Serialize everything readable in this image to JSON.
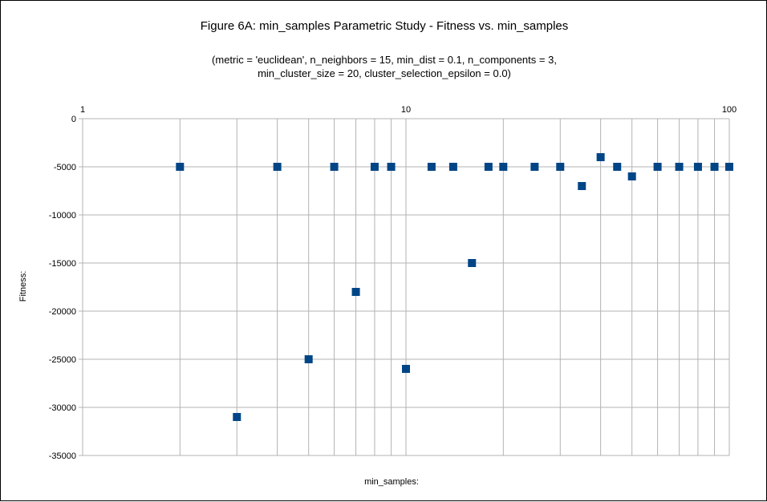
{
  "chart_data": {
    "type": "scatter",
    "title": "Figure 6A: min_samples Parametric Study - Fitness vs. min_samples",
    "subtitle_line1": "(metric = 'euclidean', n_neighbors = 15, min_dist = 0.1, n_components = 3,",
    "subtitle_line2": "min_cluster_size = 20, cluster_selection_epsilon = 0.0)",
    "xlabel": "min_samples",
    "ylabel": "Fitness",
    "x_scale": "log",
    "xlim": [
      1,
      100
    ],
    "ylim": [
      -35000,
      0
    ],
    "x_ticks": [
      {
        "value": 1,
        "label": "1"
      },
      {
        "value": 10,
        "label": "10"
      },
      {
        "value": 100,
        "label": "100"
      }
    ],
    "y_ticks": [
      {
        "value": 0,
        "label": "0"
      },
      {
        "value": -5000,
        "label": "-5000"
      },
      {
        "value": -10000,
        "label": "-10000"
      },
      {
        "value": -15000,
        "label": "-15000"
      },
      {
        "value": -20000,
        "label": "-20000"
      },
      {
        "value": -25000,
        "label": "-25000"
      },
      {
        "value": -30000,
        "label": "-30000"
      },
      {
        "value": -35000,
        "label": "-35000"
      }
    ],
    "grid": true,
    "marker_color": "#004586",
    "series": [
      {
        "points": [
          {
            "x": 2,
            "y": -5000
          },
          {
            "x": 3,
            "y": -31000
          },
          {
            "x": 4,
            "y": -5000
          },
          {
            "x": 5,
            "y": -25000
          },
          {
            "x": 6,
            "y": -5000
          },
          {
            "x": 7,
            "y": -18000
          },
          {
            "x": 8,
            "y": -5000
          },
          {
            "x": 9,
            "y": -5000
          },
          {
            "x": 10,
            "y": -26000
          },
          {
            "x": 12,
            "y": -5000
          },
          {
            "x": 14,
            "y": -5000
          },
          {
            "x": 16,
            "y": -15000
          },
          {
            "x": 18,
            "y": -5000
          },
          {
            "x": 20,
            "y": -5000
          },
          {
            "x": 25,
            "y": -5000
          },
          {
            "x": 30,
            "y": -5000
          },
          {
            "x": 35,
            "y": -7000
          },
          {
            "x": 40,
            "y": -4000
          },
          {
            "x": 45,
            "y": -5000
          },
          {
            "x": 50,
            "y": -6000
          },
          {
            "x": 60,
            "y": -5000
          },
          {
            "x": 70,
            "y": -5000
          },
          {
            "x": 80,
            "y": -5000
          },
          {
            "x": 90,
            "y": -5000
          },
          {
            "x": 100,
            "y": -5000
          }
        ]
      }
    ]
  }
}
